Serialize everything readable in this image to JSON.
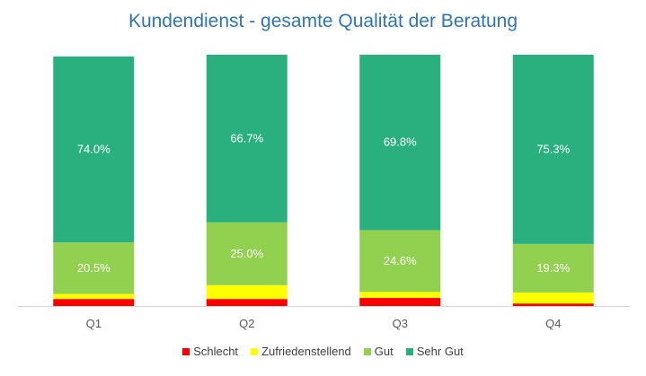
{
  "chart_data": {
    "type": "bar",
    "stacked": true,
    "title": "Kundendienst - gesamte Qualität der Beratung",
    "categories": [
      "Q1",
      "Q2",
      "Q3",
      "Q4"
    ],
    "ylim": [
      0,
      100
    ],
    "series": [
      {
        "name": "Schlecht",
        "color": "#ff0000",
        "values": [
          2.8,
          2.8,
          3.2,
          1.0
        ]
      },
      {
        "name": "Zufriedenstellend",
        "color": "#ffff00",
        "values": [
          2.0,
          5.5,
          2.4,
          4.4
        ]
      },
      {
        "name": "Gut",
        "color": "#92d050",
        "values": [
          20.5,
          25.0,
          24.6,
          19.3
        ]
      },
      {
        "name": "Sehr Gut",
        "color": "#2ab07f",
        "values": [
          74.0,
          66.7,
          69.8,
          75.3
        ]
      }
    ],
    "data_labels": [
      {
        "series": "Gut",
        "labels": [
          "20.5%",
          "25.0%",
          "24.6%",
          "19.3%"
        ]
      },
      {
        "series": "Sehr Gut",
        "labels": [
          "74.0%",
          "66.7%",
          "69.8%",
          "75.3%"
        ]
      }
    ],
    "legend_position": "bottom",
    "grid": false
  }
}
